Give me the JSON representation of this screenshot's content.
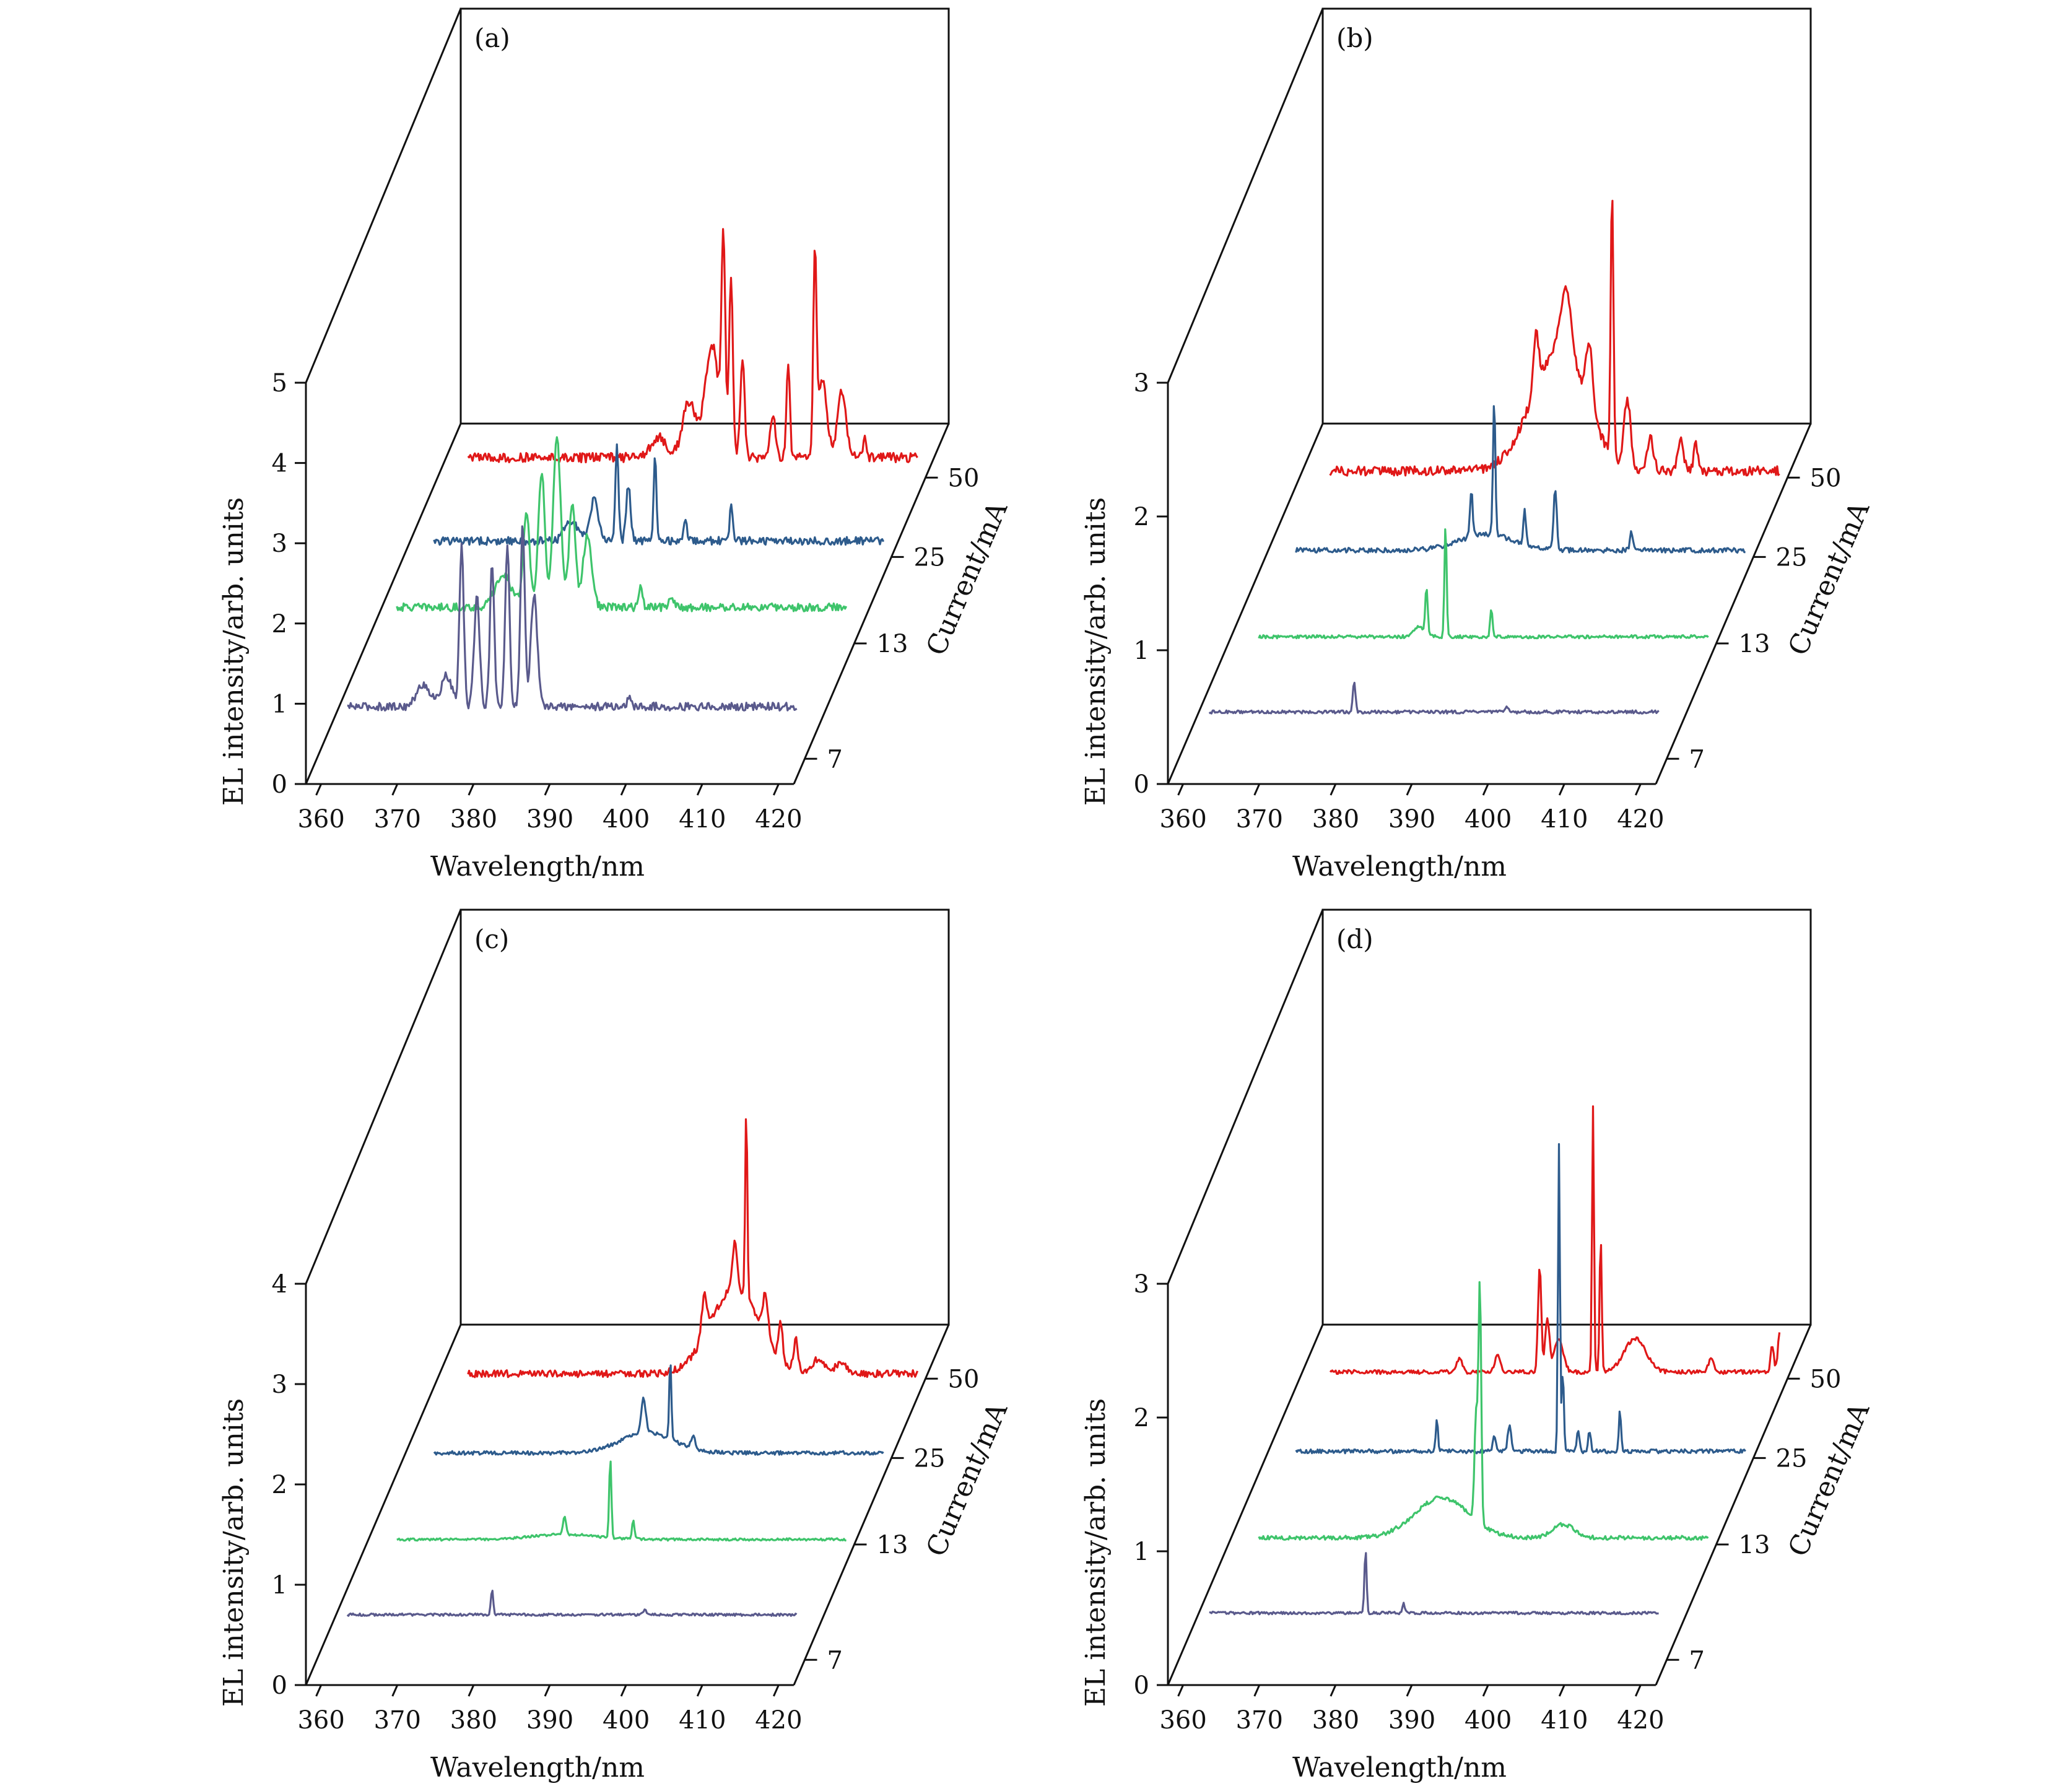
{
  "figure": {
    "series_colors": {
      "7": "#5a5a8c",
      "13": "#3ec46b",
      "25": "#2d5b8c",
      "50": "#e01818"
    }
  },
  "chart_data": [
    {
      "type": "line",
      "panel": "(a)",
      "xlabel": "Wavelength/nm",
      "ylabel": "EL intensity/arb. units",
      "zlabel": "Current/mA",
      "x_ticks": [
        "360",
        "370",
        "380",
        "390",
        "400",
        "410",
        "420"
      ],
      "y_ticks": [
        "0",
        "1",
        "2",
        "3",
        "4",
        "5"
      ],
      "z_ticks": [
        "7",
        "13",
        "25",
        "50"
      ],
      "xlim": [
        358,
        422
      ],
      "ylim": [
        0,
        5
      ],
      "series": [
        {
          "name": "7",
          "color": "#5a5a8c",
          "baseline": 0.65,
          "noise": 0.05,
          "peaks": [
            [
              372,
              0.28,
              1.2
            ],
            [
              375,
              0.38,
              1.0
            ],
            [
              377,
              2.0,
              0.4
            ],
            [
              379,
              1.4,
              0.5
            ],
            [
              381,
              1.8,
              0.4
            ],
            [
              383,
              2.0,
              0.4
            ],
            [
              385,
              2.3,
              0.4
            ],
            [
              386.5,
              1.4,
              0.6
            ],
            [
              399,
              0.15,
              0.3
            ]
          ]
        },
        {
          "name": "13",
          "color": "#3ec46b",
          "baseline": 0.45,
          "noise": 0.05,
          "peaks": [
            [
              376,
              0.4,
              1.5
            ],
            [
              379,
              1.2,
              0.6
            ],
            [
              381,
              1.7,
              0.6
            ],
            [
              383,
              2.1,
              0.7
            ],
            [
              385,
              1.3,
              0.6
            ],
            [
              387,
              0.9,
              0.8
            ],
            [
              394,
              0.28,
              0.3
            ],
            [
              398,
              0.15,
              0.4
            ]
          ]
        },
        {
          "name": "25",
          "color": "#2d5b8c",
          "baseline": 0.2,
          "noise": 0.05,
          "peaks": [
            [
              380,
              0.25,
              1.2
            ],
            [
              383,
              0.5,
              0.8
            ],
            [
              386,
              1.2,
              0.3
            ],
            [
              387.5,
              0.7,
              0.4
            ],
            [
              391,
              1.1,
              0.25
            ],
            [
              395,
              0.25,
              0.3
            ],
            [
              401,
              0.5,
              0.25
            ]
          ]
        },
        {
          "name": "50",
          "color": "#e01818",
          "baseline": 0.25,
          "noise": 0.06,
          "peaks": [
            [
              387,
              0.25,
              1.5
            ],
            [
              391,
              0.7,
              1.2
            ],
            [
              394,
              1.4,
              1.3
            ],
            [
              395.5,
              2.5,
              0.35
            ],
            [
              396.5,
              2.2,
              0.35
            ],
            [
              398,
              1.2,
              0.4
            ],
            [
              402,
              0.5,
              0.5
            ],
            [
              404,
              1.2,
              0.3
            ],
            [
              407.5,
              2.5,
              0.3
            ],
            [
              408.5,
              1.0,
              0.8
            ],
            [
              411,
              0.8,
              0.8
            ],
            [
              414,
              0.25,
              0.3
            ]
          ]
        }
      ]
    },
    {
      "type": "line",
      "panel": "(b)",
      "xlabel": "Wavelength/nm",
      "ylabel": "EL intensity/arb. units",
      "zlabel": "Current/mA",
      "x_ticks": [
        "360",
        "370",
        "380",
        "390",
        "400",
        "410",
        "420"
      ],
      "y_ticks": [
        "0",
        "1",
        "2",
        "3"
      ],
      "z_ticks": [
        "7",
        "13",
        "25",
        "50"
      ],
      "xlim": [
        358,
        422
      ],
      "ylim": [
        0,
        3
      ],
      "series": [
        {
          "name": "7",
          "color": "#5a5a8c",
          "baseline": 0.35,
          "noise": 0.012,
          "peaks": [
            [
              381,
              0.22,
              0.25
            ],
            [
              401,
              0.04,
              0.3
            ]
          ]
        },
        {
          "name": "13",
          "color": "#3ec46b",
          "baseline": 0.05,
          "noise": 0.012,
          "peaks": [
            [
              383,
              0.08,
              1.0
            ],
            [
              384,
              0.35,
              0.22
            ],
            [
              386.5,
              0.85,
              0.2
            ],
            [
              392.5,
              0.2,
              0.22
            ]
          ]
        },
        {
          "name": "25",
          "color": "#2d5b8c",
          "baseline": 0.05,
          "noise": 0.018,
          "peaks": [
            [
              387,
              0.12,
              5.0
            ],
            [
              385,
              0.35,
              0.25
            ],
            [
              388,
              1.0,
              0.22
            ],
            [
              392,
              0.25,
              0.25
            ],
            [
              396,
              0.45,
              0.3
            ],
            [
              406,
              0.15,
              0.25
            ]
          ]
        },
        {
          "name": "50",
          "color": "#e01818",
          "baseline": 0.05,
          "noise": 0.035,
          "peaks": [
            [
              392,
              0.9,
              5.0
            ],
            [
              389,
              0.4,
              0.5
            ],
            [
              393,
              0.5,
              1.0
            ],
            [
              396,
              0.5,
              0.6
            ],
            [
              399,
              2.0,
              0.25
            ],
            [
              401,
              0.5,
              0.6
            ],
            [
              404,
              0.25,
              0.6
            ],
            [
              408,
              0.25,
              0.5
            ],
            [
              410,
              0.2,
              0.4
            ]
          ]
        }
      ]
    },
    {
      "type": "line",
      "panel": "(c)",
      "xlabel": "Wavelength/nm",
      "ylabel": "EL intensity/arb. units",
      "zlabel": "Current/mA",
      "x_ticks": [
        "360",
        "370",
        "380",
        "390",
        "400",
        "410",
        "420"
      ],
      "y_ticks": [
        "0",
        "1",
        "2",
        "3",
        "4"
      ],
      "z_ticks": [
        "7",
        "13",
        "25",
        "50"
      ],
      "xlim": [
        358,
        422
      ],
      "ylim": [
        0,
        4
      ],
      "series": [
        {
          "name": "7",
          "color": "#5a5a8c",
          "baseline": 0.45,
          "noise": 0.012,
          "peaks": [
            [
              381,
              0.25,
              0.22
            ],
            [
              401,
              0.05,
              0.3
            ]
          ]
        },
        {
          "name": "13",
          "color": "#3ec46b",
          "baseline": 0.05,
          "noise": 0.012,
          "peaks": [
            [
              384,
              0.05,
              6.0
            ],
            [
              384,
              0.18,
              0.3
            ],
            [
              390,
              0.8,
              0.2
            ],
            [
              393,
              0.18,
              0.22
            ]
          ]
        },
        {
          "name": "25",
          "color": "#2d5b8c",
          "baseline": 0.05,
          "noise": 0.018,
          "peaks": [
            [
              390,
              0.2,
              5.0
            ],
            [
              389.5,
              0.35,
              0.4
            ],
            [
              393,
              0.8,
              0.2
            ],
            [
              396,
              0.12,
              0.4
            ]
          ]
        },
        {
          "name": "50",
          "color": "#e01818",
          "baseline": 0.05,
          "noise": 0.035,
          "peaks": [
            [
              397,
              0.85,
              4.5
            ],
            [
              393,
              0.4,
              0.5
            ],
            [
              397,
              0.5,
              0.4
            ],
            [
              398.5,
              1.9,
              0.2
            ],
            [
              401,
              0.4,
              0.5
            ],
            [
              403,
              0.35,
              0.4
            ],
            [
              405,
              0.3,
              0.4
            ],
            [
              408,
              0.15,
              1.2
            ],
            [
              411,
              0.12,
              1.0
            ]
          ]
        }
      ]
    },
    {
      "type": "line",
      "panel": "(d)",
      "xlabel": "Wavelength/nm",
      "ylabel": "EL intensity/arb. units",
      "zlabel": "Current/mA",
      "x_ticks": [
        "360",
        "370",
        "380",
        "390",
        "400",
        "410",
        "420"
      ],
      "y_ticks": [
        "0",
        "1",
        "2",
        "3"
      ],
      "z_ticks": [
        "7",
        "13",
        "25",
        "50"
      ],
      "xlim": [
        358,
        422
      ],
      "ylim": [
        0,
        3
      ],
      "series": [
        {
          "name": "7",
          "color": "#5a5a8c",
          "baseline": 0.35,
          "noise": 0.01,
          "peaks": [
            [
              382.5,
              0.48,
              0.2
            ],
            [
              387.5,
              0.08,
              0.2
            ]
          ]
        },
        {
          "name": "13",
          "color": "#3ec46b",
          "baseline": 0.05,
          "noise": 0.015,
          "peaks": [
            [
              386,
              0.3,
              5.0
            ],
            [
              391,
              1.8,
              0.25
            ],
            [
              390.5,
              0.8,
              0.3
            ],
            [
              402,
              0.1,
              2.0
            ]
          ]
        },
        {
          "name": "25",
          "color": "#2d5b8c",
          "baseline": 0.05,
          "noise": 0.015,
          "peaks": [
            [
              380.5,
              0.25,
              0.2
            ],
            [
              388,
              0.1,
              0.3
            ],
            [
              390,
              0.2,
              0.3
            ],
            [
              396.5,
              2.3,
              0.18
            ],
            [
              397,
              0.6,
              0.2
            ],
            [
              399,
              0.15,
              0.25
            ],
            [
              400.5,
              0.15,
              0.25
            ],
            [
              404.5,
              0.3,
              0.22
            ]
          ]
        },
        {
          "name": "50",
          "color": "#e01818",
          "baseline": 0.05,
          "noise": 0.015,
          "peaks": [
            [
              379,
              0.1,
              0.5
            ],
            [
              384,
              0.12,
              0.5
            ],
            [
              389.5,
              0.8,
              0.3
            ],
            [
              390.5,
              0.4,
              0.4
            ],
            [
              392,
              0.25,
              0.8
            ],
            [
              396.5,
              2.0,
              0.18
            ],
            [
              397.5,
              1.0,
              0.2
            ],
            [
              402,
              0.25,
              2.0
            ],
            [
              412,
              0.1,
              0.5
            ],
            [
              420,
              0.2,
              0.3
            ],
            [
              421,
              0.3,
              0.35
            ]
          ]
        }
      ]
    }
  ]
}
